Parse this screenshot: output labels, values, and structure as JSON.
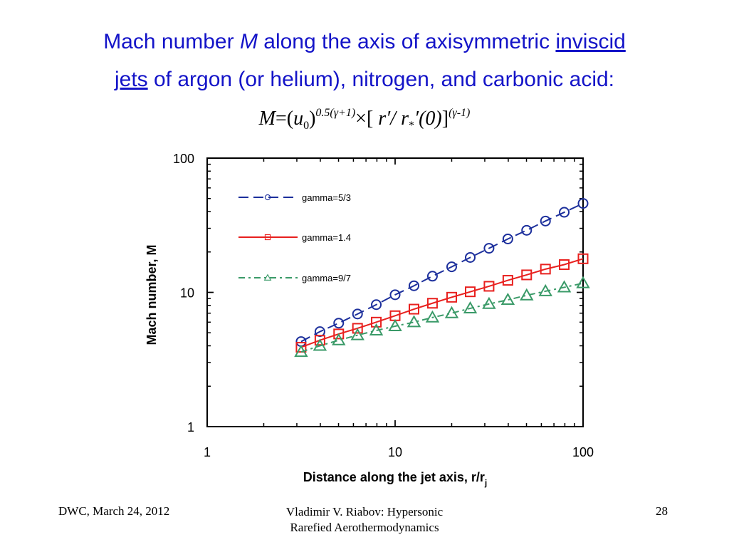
{
  "title": {
    "line1_a": "Mach number ",
    "line1_m": "M",
    "line1_b": " along the axis of axisymmetric ",
    "line1_link": "inviscid",
    "line2_link": "jets",
    "line2_b": " of argon (or helium), nitrogen, and carbonic acid:"
  },
  "formula": {
    "m": "M",
    "eq": "=(",
    "u": "u",
    "u_sub": "0",
    "close": ")",
    "exp1": "0.5(γ+1)",
    "times": "×[ ",
    "ratio": "r′/ r",
    "star_sub": "*",
    "zero": "′(0)",
    "bracket": "]",
    "exp2": "(γ-1)"
  },
  "chart_data": {
    "type": "scatter",
    "xlabel": "Distance along the jet axis, r/r",
    "xlabel_sub": "j",
    "ylabel": "Mach number, M",
    "x_scale": "log",
    "y_scale": "log",
    "xlim": [
      1,
      100
    ],
    "ylim": [
      1,
      100
    ],
    "xticks": [
      "1",
      "10",
      "100"
    ],
    "yticks": [
      "1",
      "10",
      "100"
    ],
    "grid": false,
    "legend_position": "top-left",
    "series": [
      {
        "name": "gamma=5/3",
        "color": "#1c2f9c",
        "marker": "circle",
        "line": "dashed",
        "x": [
          3.16,
          3.98,
          5.01,
          6.31,
          7.94,
          10.0,
          12.6,
          15.8,
          20.0,
          25.1,
          31.6,
          39.8,
          50.1,
          63.1,
          79.4,
          100.0
        ],
        "y": [
          4.3,
          5.1,
          5.9,
          6.9,
          8.1,
          9.6,
          11.2,
          13.2,
          15.5,
          18.2,
          21.3,
          25.0,
          29.0,
          34.0,
          39.5,
          46.0
        ]
      },
      {
        "name": "gamma=1.4",
        "color": "#e8201e",
        "marker": "square",
        "line": "solid",
        "x": [
          3.16,
          3.98,
          5.01,
          6.31,
          7.94,
          10.0,
          12.6,
          15.8,
          20.0,
          25.1,
          31.6,
          39.8,
          50.1,
          63.1,
          79.4,
          100.0
        ],
        "y": [
          3.9,
          4.4,
          4.9,
          5.4,
          6.0,
          6.7,
          7.5,
          8.3,
          9.2,
          10.1,
          11.1,
          12.3,
          13.5,
          14.9,
          16.1,
          17.8
        ]
      },
      {
        "name": "gamma=9/7",
        "color": "#3a9a68",
        "marker": "triangle",
        "line": "dash-dot",
        "x": [
          3.16,
          3.98,
          5.01,
          6.31,
          7.94,
          10.0,
          12.6,
          15.8,
          20.0,
          25.1,
          31.6,
          39.8,
          50.1,
          63.1,
          79.4,
          100.0
        ],
        "y": [
          3.6,
          4.0,
          4.4,
          4.8,
          5.2,
          5.6,
          6.0,
          6.5,
          7.0,
          7.6,
          8.2,
          8.8,
          9.5,
          10.2,
          10.9,
          11.7
        ]
      }
    ]
  },
  "footer": {
    "left": "DWC, March 24, 2012",
    "center_line1": "Vladimir V. Riabov: Hypersonic",
    "center_line2": "Rarefied Aerothermodynamics",
    "page": "28"
  }
}
